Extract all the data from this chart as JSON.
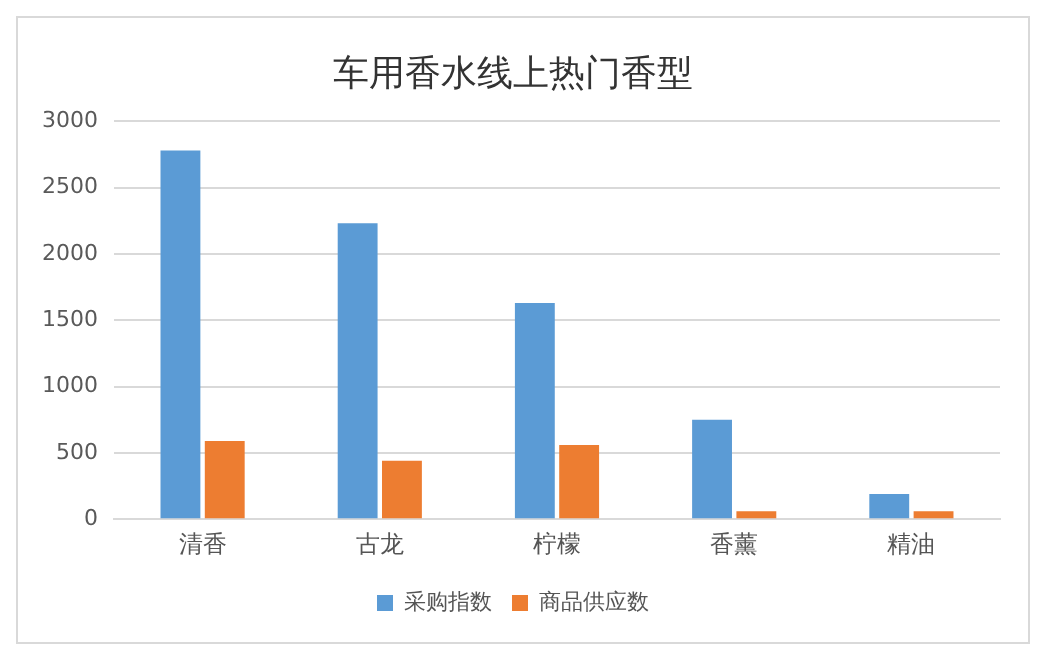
{
  "chart_data": {
    "type": "bar",
    "title": "车用香水线上热门香型",
    "categories": [
      "清香",
      "古龙",
      "柠檬",
      "香薰",
      "精油"
    ],
    "series": [
      {
        "name": "采购指数",
        "color": "#5b9bd5",
        "values": [
          2780,
          2230,
          1630,
          750,
          190
        ]
      },
      {
        "name": "商品供应数",
        "color": "#ed7d31",
        "values": [
          590,
          440,
          560,
          60,
          60
        ]
      }
    ],
    "ylim": [
      0,
      3000
    ],
    "yticks": [
      0,
      500,
      1000,
      1500,
      2000,
      2500,
      3000
    ],
    "grid": "y",
    "legend": "bottom"
  }
}
